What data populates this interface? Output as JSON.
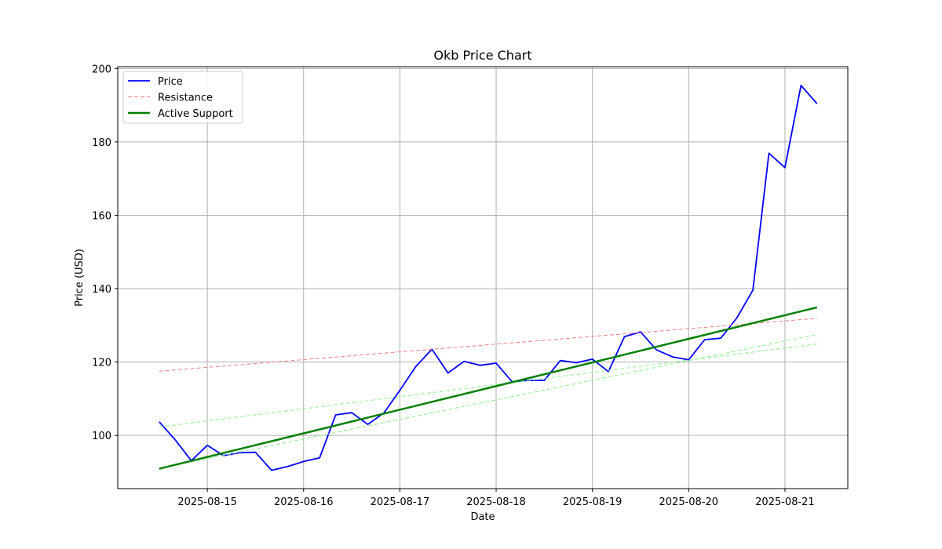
{
  "chart_data": {
    "type": "line",
    "title": "Okb Price Chart",
    "xlabel": "Date",
    "ylabel": "Price (USD)",
    "x_ticks": [
      "2025-08-15",
      "2025-08-16",
      "2025-08-17",
      "2025-08-18",
      "2025-08-19",
      "2025-08-20",
      "2025-08-21"
    ],
    "y_ticks": [
      100,
      120,
      140,
      160,
      180,
      200
    ],
    "xlim": [
      "2025-08-14T01:40",
      "2025-08-21T15:40"
    ],
    "ylim": [
      85.5,
      200.5
    ],
    "grid": true,
    "legend_position": "top-left",
    "series": [
      {
        "name": "Price",
        "style": "solid",
        "color": "#0000ff",
        "x": [
          "2025-08-14T12:00",
          "2025-08-14T16:00",
          "2025-08-14T20:00",
          "2025-08-15T00:00",
          "2025-08-15T04:00",
          "2025-08-15T08:00",
          "2025-08-15T12:00",
          "2025-08-15T16:00",
          "2025-08-15T20:00",
          "2025-08-16T00:00",
          "2025-08-16T04:00",
          "2025-08-16T08:00",
          "2025-08-16T12:00",
          "2025-08-16T16:00",
          "2025-08-16T20:00",
          "2025-08-17T00:00",
          "2025-08-17T04:00",
          "2025-08-17T08:00",
          "2025-08-17T12:00",
          "2025-08-17T16:00",
          "2025-08-17T20:00",
          "2025-08-18T00:00",
          "2025-08-18T04:00",
          "2025-08-18T08:00",
          "2025-08-18T12:00",
          "2025-08-18T16:00",
          "2025-08-18T20:00",
          "2025-08-19T00:00",
          "2025-08-19T04:00",
          "2025-08-19T08:00",
          "2025-08-19T12:00",
          "2025-08-19T16:00",
          "2025-08-19T20:00",
          "2025-08-20T00:00",
          "2025-08-20T04:00",
          "2025-08-20T08:00",
          "2025-08-20T12:00",
          "2025-08-20T16:00",
          "2025-08-20T20:00",
          "2025-08-21T00:00",
          "2025-08-21T04:00",
          "2025-08-21T08:00"
        ],
        "values": [
          103.7,
          98.8,
          93.1,
          97.3,
          94.5,
          95.3,
          95.4,
          90.5,
          91.5,
          92.9,
          93.9,
          105.6,
          106.2,
          103.0,
          106.1,
          112.3,
          118.8,
          123.5,
          117.0,
          120.2,
          119.1,
          119.7,
          114.6,
          115.0,
          115.0,
          120.4,
          119.8,
          120.8,
          117.4,
          126.9,
          128.2,
          123.3,
          121.4,
          120.6,
          126.1,
          126.5,
          132.0,
          139.6,
          176.9,
          173.0,
          195.4,
          190.4
        ]
      },
      {
        "name": "Resistance",
        "style": "dashed",
        "color": "#f08080",
        "x": [
          "2025-08-14T12:00",
          "2025-08-21T08:00"
        ],
        "values": [
          117.5,
          131.9
        ]
      },
      {
        "name": "",
        "style": "dashed",
        "color": "#90ee90",
        "x": [
          "2025-08-14T12:00",
          "2025-08-21T08:00"
        ],
        "values": [
          102.3,
          124.9
        ]
      },
      {
        "name": "",
        "style": "dashed",
        "color": "#90ee90",
        "x": [
          "2025-08-14T12:00",
          "2025-08-21T08:00"
        ],
        "values": [
          91.0,
          127.5
        ]
      },
      {
        "name": "Active Support",
        "style": "solid-thick",
        "color": "#008000",
        "x": [
          "2025-08-14T12:00",
          "2025-08-21T08:00"
        ],
        "values": [
          90.9,
          134.9
        ]
      }
    ],
    "legend": [
      "Price",
      "Resistance",
      "Active Support"
    ]
  }
}
